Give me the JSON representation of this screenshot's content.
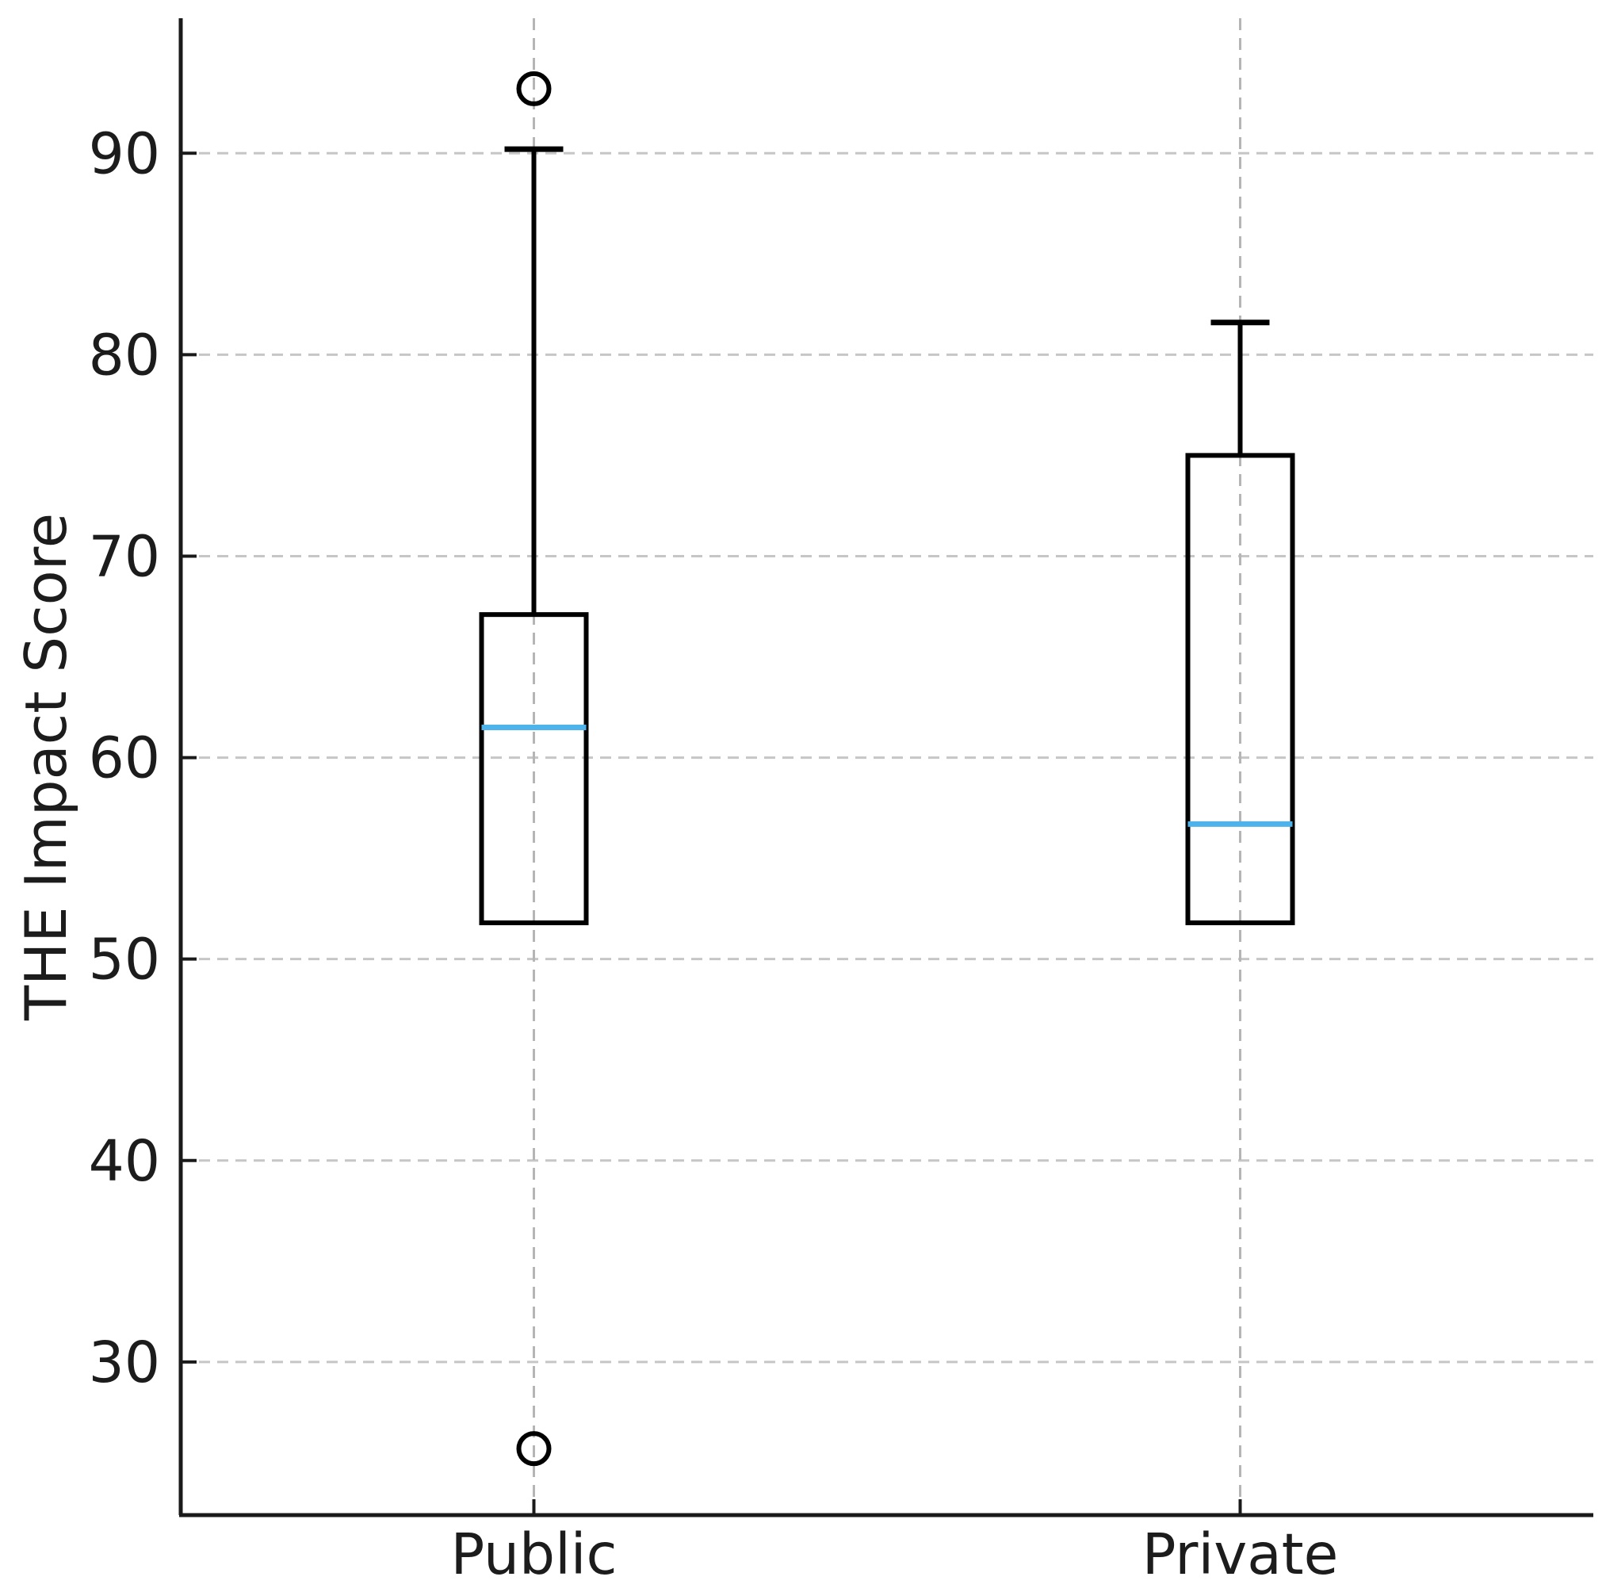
{
  "chart_data": {
    "type": "boxplot",
    "title": "",
    "xlabel": "",
    "ylabel": "THE Impact Score",
    "categories": [
      "Public",
      "Private"
    ],
    "ylim": [
      22.4,
      96.7
    ],
    "yticks": [
      30,
      40,
      50,
      60,
      70,
      80,
      90
    ],
    "grid": {
      "horizontal": true,
      "vertical_at_categories": true,
      "style": "dashed"
    },
    "legend": "none",
    "series": [
      {
        "name": "Public",
        "q1": 51.8,
        "median": 61.5,
        "q3": 67.1,
        "whisker_low": 51.8,
        "whisker_high": 90.2,
        "outliers": [
          93.2,
          25.7
        ]
      },
      {
        "name": "Private",
        "q1": 51.8,
        "median": 56.7,
        "q3": 75.0,
        "whisker_low": 51.8,
        "whisker_high": 81.6,
        "outliers": []
      }
    ],
    "colors": {
      "box_line": "#000000",
      "median_line": "#4db3ea",
      "grid_horizontal": "#c6c6c6",
      "grid_vertical": "#b5b5b5",
      "spine": "#1a1a1a",
      "tick_label": "#1c1c1c",
      "outlier_stroke": "#000000"
    }
  }
}
